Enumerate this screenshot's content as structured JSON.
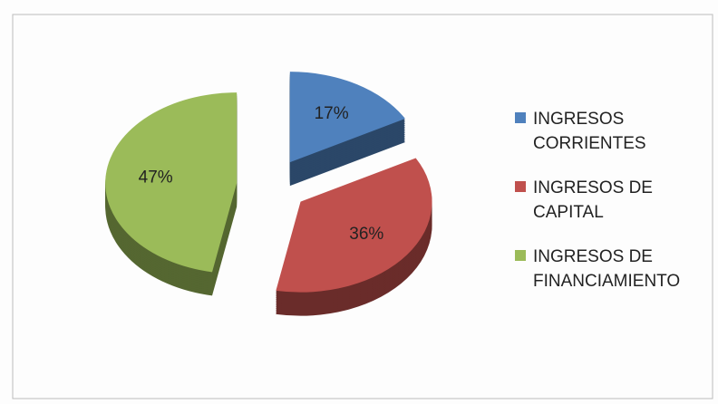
{
  "chart_data": {
    "type": "pie",
    "categories": [
      "INGRESOS CORRIENTES",
      "INGRESOS DE CAPITAL",
      "INGRESOS DE FINANCIAMIENTO"
    ],
    "values": [
      17,
      36,
      47
    ],
    "value_labels": [
      "17%",
      "36%",
      "47%"
    ],
    "colors": [
      "#4f81bd",
      "#c0504d",
      "#9bbb59"
    ],
    "legend": "right"
  }
}
